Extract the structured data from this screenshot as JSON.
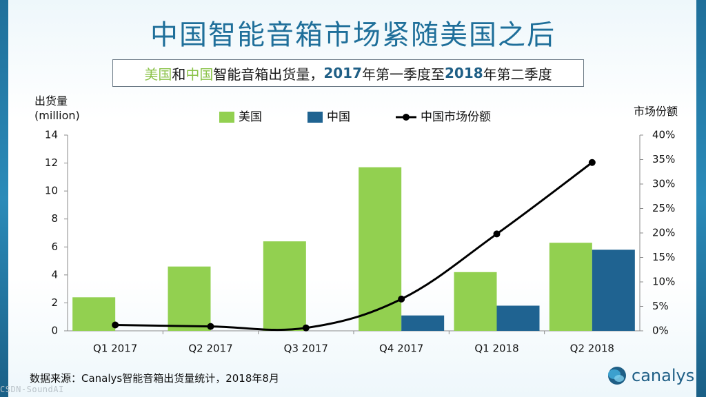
{
  "title": "中国智能音箱市场紧随美国之后",
  "subtitle": {
    "part1": "美国",
    "part2": "和",
    "part3": "中国",
    "part4": "智能音箱出货量，",
    "part5": "2017",
    "part6": "年第一季度至",
    "part7": "2018",
    "part8": "年第二季度"
  },
  "left_axis_title_line1": "出货量",
  "left_axis_title_line2": "(million)",
  "right_axis_title": "市场份额",
  "source": "数据来源：Canalys智能音箱出货量统计，2018年8月",
  "logo_text": "canalys",
  "watermark": "CSDN-SoundAI",
  "colors": {
    "us": "#92d050",
    "china": "#1f6391",
    "share_line": "#000000",
    "title": "#1f6f9a"
  },
  "chart_data": {
    "type": "bar",
    "categories": [
      "Q1 2017",
      "Q2 2017",
      "Q3 2017",
      "Q4 2017",
      "Q1 2018",
      "Q2 2018"
    ],
    "series": [
      {
        "name": "美国",
        "type": "bar",
        "axis": "left",
        "values": [
          2.4,
          4.6,
          6.4,
          11.7,
          4.2,
          6.3
        ]
      },
      {
        "name": "中国",
        "type": "bar",
        "axis": "left",
        "values": [
          0.0,
          0.0,
          0.0,
          1.1,
          1.8,
          5.8
        ]
      },
      {
        "name": "中国市场份额",
        "type": "line",
        "axis": "right",
        "values": [
          1.2,
          0.9,
          0.6,
          6.5,
          19.8,
          34.4
        ]
      }
    ],
    "left_axis": {
      "min": 0,
      "max": 14,
      "ticks": [
        0,
        2,
        4,
        6,
        8,
        10,
        12,
        14
      ]
    },
    "right_axis": {
      "min": 0,
      "max": 40,
      "ticks": [
        "0%",
        "5%",
        "10%",
        "15%",
        "20%",
        "25%",
        "30%",
        "35%",
        "40%"
      ]
    },
    "legend_position": "top-center",
    "grid": false
  }
}
